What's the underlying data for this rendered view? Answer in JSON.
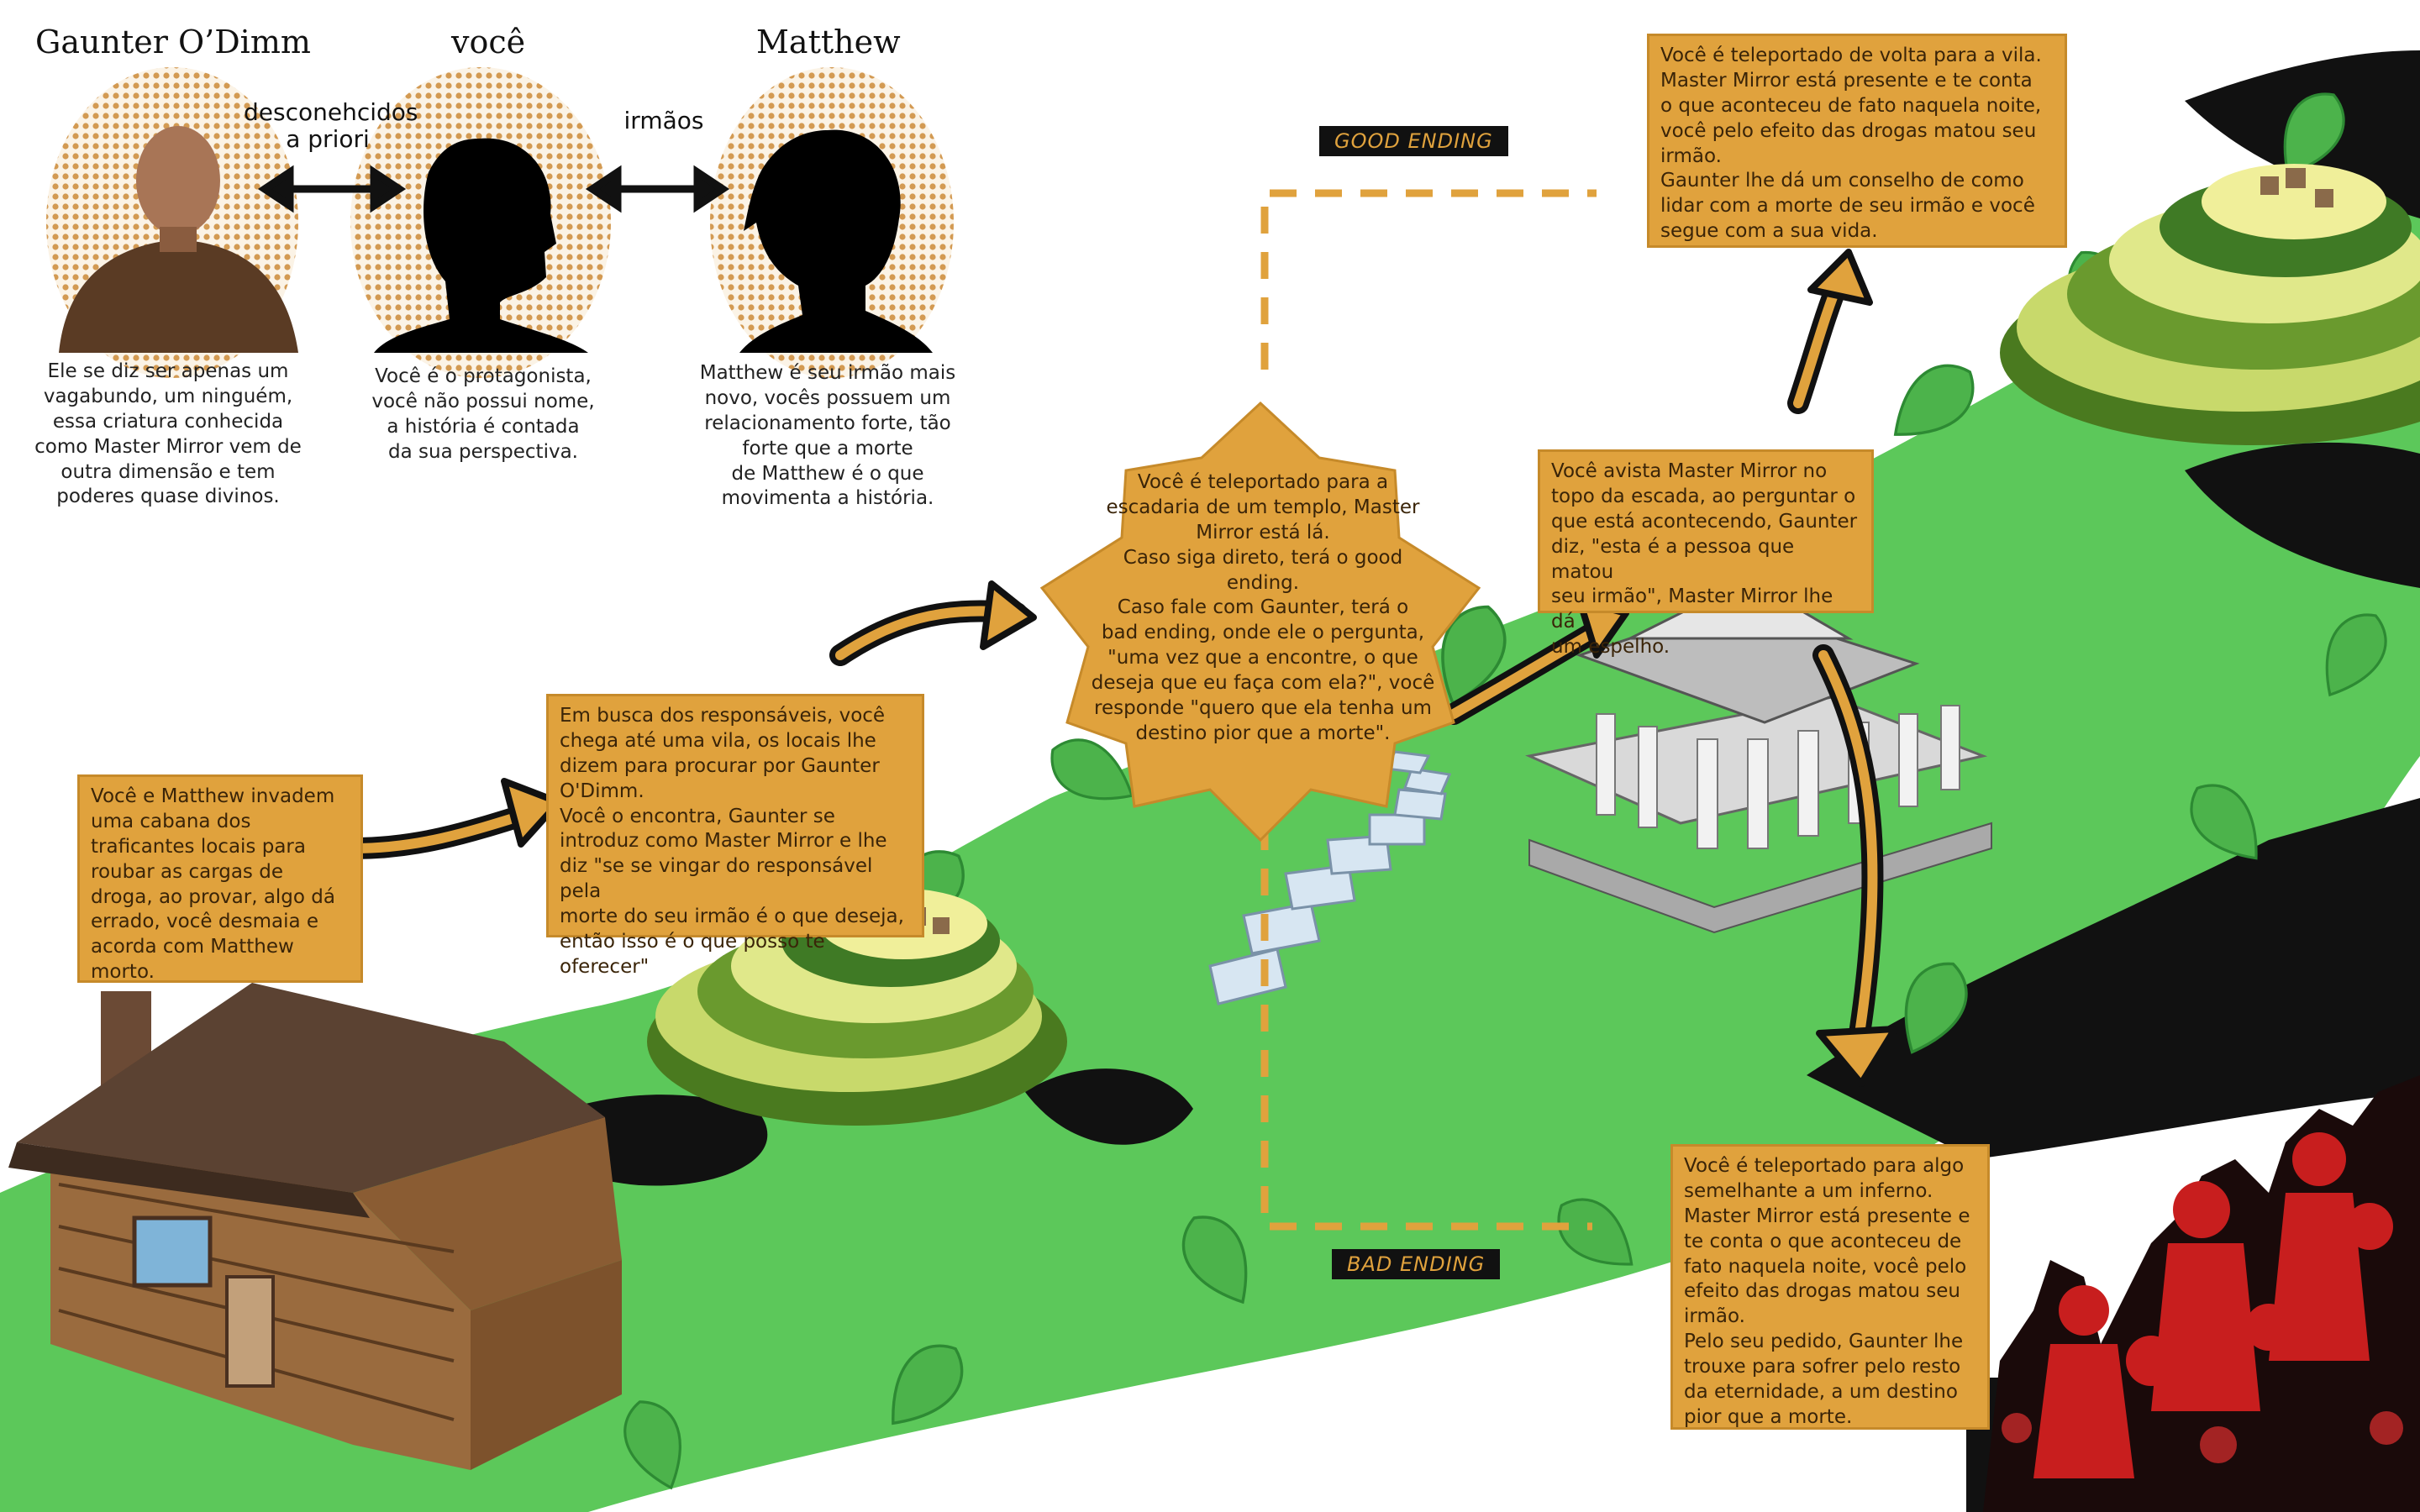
{
  "characters": {
    "gaunter": {
      "name": "Gaunter O’Dimm",
      "caption": "Ele se diz ser apenas um\nvagabundo, um ninguém,\nessa criatura conhecida\ncomo Master Mirror vem de\noutra dimensão e tem\npoderes quase divinos."
    },
    "voce": {
      "name": "você",
      "caption": "Você é o protagonista,\nvocê não possui nome,\na história é contada\nda sua perspectiva."
    },
    "matthew": {
      "name": "Matthew",
      "caption": "Matthew é seu irmão mais\nnovo, vocês possuem um\nrelacionamento forte, tão\nforte que a morte\nde Matthew é o que\nmovimenta a história."
    }
  },
  "relations": {
    "gaunter_voce": "desconehcidos\na priori",
    "voce_matthew": "irmãos"
  },
  "story": {
    "step1": "Você e Matthew invadem\numa cabana dos\ntraficantes locais para\nroubar as cargas de\ndroga, ao provar, algo dá\nerrado, você desmaia e\nacorda com Matthew\nmorto.",
    "step2": "Em busca dos responsáveis, você\nchega até uma vila, os locais lhe\ndizem para procurar por Gaunter\nO'Dimm.\nVocê o encontra, Gaunter se\nintroduz como Master Mirror e lhe\ndiz \"se se vingar do responsável pela\nmorte do seu irmão é o que deseja,\nentão isso é o que posso te oferecer\"",
    "step3": "Você é teleportado para a\nescadaria de um templo, Master\nMirror está lá.\nCaso siga direto, terá o good\nending.\nCaso fale com Gaunter, terá o\nbad ending, onde  ele o pergunta,\n\"uma vez que a encontre, o que\ndeseja que eu faça com ela?\", você\nresponde \"quero que ela tenha um\ndestino pior que a morte\".",
    "step4": "Você avista Master Mirror no\ntopo da escada, ao perguntar o\nque está acontecendo, Gaunter\ndiz, \"esta é a pessoa que matou\nseu irmão\", Master Mirror lhe dá\num espelho.",
    "good": "Você é teleportado de volta para a vila.\nMaster Mirror está presente e te conta\no que aconteceu de fato naquela noite,\nvocê pelo efeito das drogas matou seu\nirmão.\nGaunter lhe dá um conselho de como\nlidar com a morte de seu irmão e você\nsegue com a sua vida.",
    "bad": "Você é teleportado para algo\nsemelhante a um inferno.\nMaster Mirror está presente e\nte conta o que aconteceu de\nfato naquela noite, você pelo\nefeito das drogas matou seu\nirmão.\nPelo seu pedido, Gaunter lhe\ntrouxe para sofrer pelo resto\nda eternidade, a um destino\npior que a morte."
  },
  "endings": {
    "good_label": "GOOD ENDING",
    "bad_label": "BAD ENDING"
  },
  "colors": {
    "box": "#e0a23d",
    "leaf": "#5cc85a",
    "dark_leaf": "#111111",
    "arrow": "#e0a23d"
  }
}
